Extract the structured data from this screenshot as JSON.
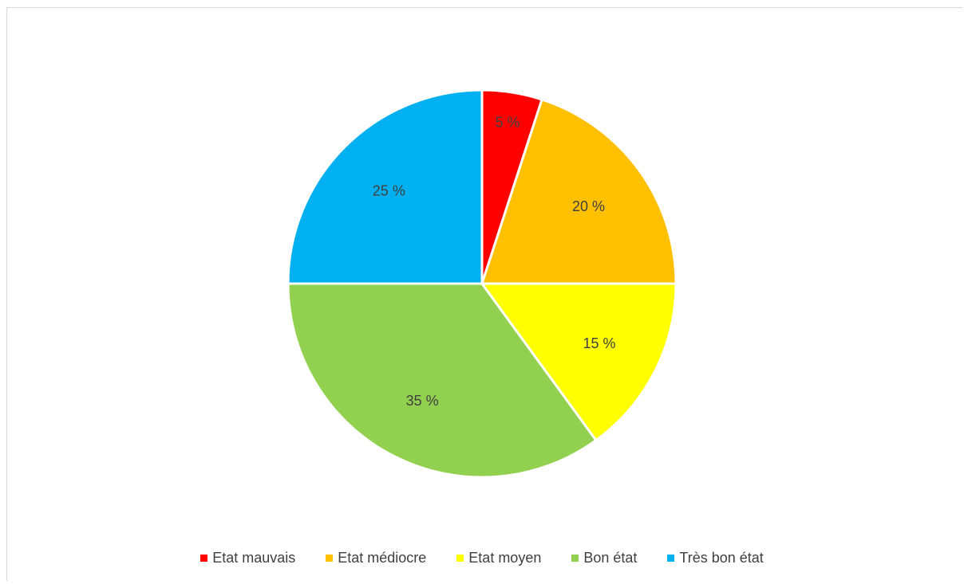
{
  "chart_data": {
    "type": "pie",
    "title": "",
    "legend_position": "bottom",
    "categories": [
      "Etat mauvais",
      "Etat médiocre",
      "Etat moyen",
      "Bon état",
      "Très bon état"
    ],
    "values": [
      5,
      20,
      15,
      35,
      25
    ],
    "labels": [
      "5 %",
      "20 %",
      "15 %",
      "35 %",
      "25 %"
    ],
    "colors": [
      "#ff0000",
      "#ffc000",
      "#ffff00",
      "#92d050",
      "#00b0f0"
    ]
  }
}
